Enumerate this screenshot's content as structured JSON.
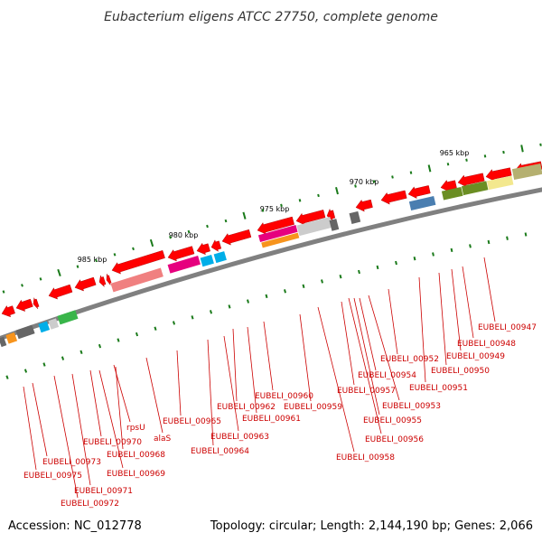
{
  "title": "Eubacterium eligens ATCC 27750, complete genome",
  "footer": {
    "accession": "Accession: NC_012778",
    "summary": "Topology: circular; Length: 2,144,190 bp; Genes: 2,066"
  },
  "scale": {
    "ticks": [
      "965 kbp",
      "970 kbp",
      "975 kbp",
      "980 kbp",
      "985 kbp"
    ]
  },
  "colors": {
    "gene_red": "#ff0000",
    "label_red": "#cc0000",
    "backbone": "#888888",
    "tick_green": "#1a7a1a",
    "magenta": "#e6007e",
    "cyan": "#00aee8",
    "orange": "#f7941d",
    "green": "#39b54a",
    "olive": "#6b8e23",
    "yellow": "#f3e88e",
    "blue": "#4a7eb0",
    "grey": "#666666",
    "salmon": "#f08080"
  },
  "gene_labels": [
    "EUBELI_00947",
    "EUBELI_00948",
    "EUBELI_00949",
    "EUBELI_00950",
    "EUBELI_00951",
    "EUBELI_00952",
    "EUBELI_00953",
    "EUBELI_00954",
    "EUBELI_00955",
    "EUBELI_00956",
    "EUBELI_00957",
    "EUBELI_00958",
    "EUBELI_00959",
    "EUBELI_00960",
    "EUBELI_00961",
    "EUBELI_00962",
    "EUBELI_00963",
    "EUBELI_00964",
    "EUBELI_00965",
    "alaS",
    "rpsU",
    "EUBELI_00968",
    "EUBELI_00969",
    "EUBELI_00970",
    "EUBELI_00971",
    "EUBELI_00972",
    "EUBELI_00973",
    "EUBELI_00975"
  ]
}
